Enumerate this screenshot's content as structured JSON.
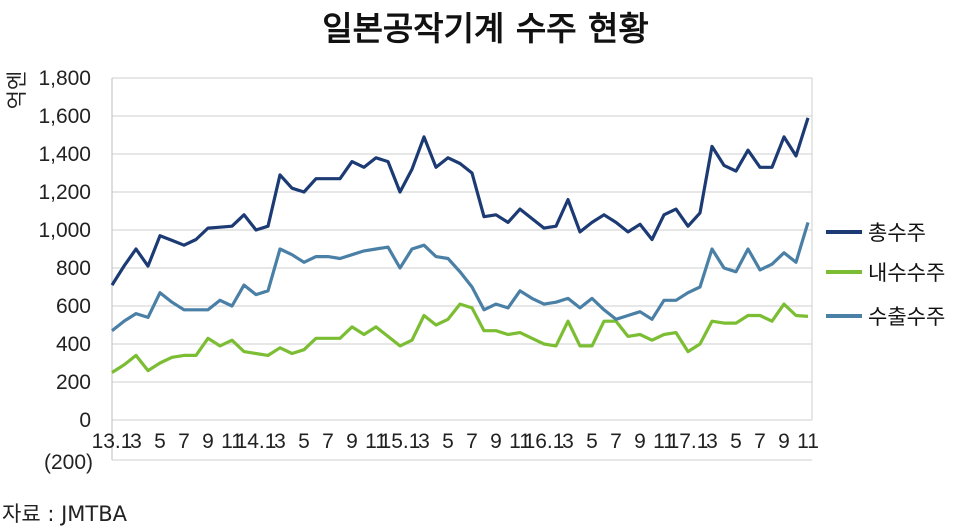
{
  "title": "일본공작기계 수주 현황",
  "source": "자료 : JMTBA",
  "colors": {
    "total": "#1c3a73",
    "domestic": "#7bbd33",
    "export": "#4a7fa6",
    "grid": "#cfcfcf",
    "negative_label": "#c0392b"
  },
  "chart_data": {
    "type": "line",
    "title": "일본공작기계 수주 현황",
    "ylabel": "억엔",
    "ylim": [
      0,
      1800
    ],
    "yticks": [
      "1,800",
      "1,600",
      "1,400",
      "1,200",
      "1,000",
      "800",
      "600",
      "400",
      "200",
      "0"
    ],
    "y_negative_label": "(200)",
    "x_tick_labels": [
      "13.1",
      "3",
      "5",
      "7",
      "9",
      "11",
      "14.1",
      "3",
      "5",
      "7",
      "9",
      "11",
      "15.1",
      "3",
      "5",
      "7",
      "9",
      "11",
      "16.1",
      "3",
      "5",
      "7",
      "9",
      "11",
      "17.1",
      "3",
      "5",
      "7",
      "9",
      "11"
    ],
    "legend_position": "right",
    "grid": true,
    "x": [
      "13.1",
      "2",
      "3",
      "4",
      "5",
      "6",
      "7",
      "8",
      "9",
      "10",
      "11",
      "12",
      "14.1",
      "2",
      "3",
      "4",
      "5",
      "6",
      "7",
      "8",
      "9",
      "10",
      "11",
      "12",
      "15.1",
      "2",
      "3",
      "4",
      "5",
      "6",
      "7",
      "8",
      "9",
      "10",
      "11",
      "12",
      "16.1",
      "2",
      "3",
      "4",
      "5",
      "6",
      "7",
      "8",
      "9",
      "10",
      "11",
      "12",
      "17.1",
      "2",
      "3",
      "4",
      "5",
      "6",
      "7",
      "8",
      "9",
      "10",
      "11"
    ],
    "series": [
      {
        "name": "총수주",
        "values": [
          710,
          810,
          900,
          810,
          970,
          945,
          920,
          950,
          1010,
          1015,
          1020,
          1080,
          1000,
          1020,
          1290,
          1220,
          1200,
          1270,
          1270,
          1270,
          1360,
          1330,
          1380,
          1360,
          1200,
          1320,
          1490,
          1330,
          1380,
          1350,
          1300,
          1070,
          1080,
          1040,
          1110,
          1060,
          1010,
          1020,
          1160,
          990,
          1040,
          1080,
          1040,
          990,
          1030,
          950,
          1080,
          1110,
          1020,
          1090,
          1440,
          1340,
          1310,
          1420,
          1330,
          1330,
          1490,
          1390,
          1590
        ]
      },
      {
        "name": "내수수주",
        "values": [
          250,
          290,
          340,
          260,
          300,
          330,
          340,
          340,
          430,
          390,
          420,
          360,
          350,
          340,
          380,
          350,
          370,
          430,
          430,
          430,
          490,
          450,
          490,
          440,
          390,
          420,
          550,
          500,
          530,
          610,
          590,
          470,
          470,
          450,
          460,
          430,
          400,
          390,
          520,
          390,
          390,
          520,
          520,
          440,
          450,
          420,
          450,
          460,
          360,
          400,
          520,
          510,
          510,
          550,
          550,
          520,
          610,
          550,
          545
        ]
      },
      {
        "name": "수출수주",
        "values": [
          470,
          520,
          560,
          540,
          670,
          620,
          580,
          580,
          580,
          630,
          600,
          710,
          660,
          680,
          900,
          870,
          830,
          860,
          860,
          850,
          870,
          890,
          900,
          910,
          800,
          900,
          920,
          860,
          850,
          780,
          700,
          580,
          610,
          590,
          680,
          640,
          610,
          620,
          640,
          590,
          640,
          580,
          530,
          550,
          570,
          530,
          630,
          630,
          670,
          700,
          900,
          800,
          780,
          900,
          790,
          820,
          880,
          830,
          1040
        ]
      }
    ]
  }
}
